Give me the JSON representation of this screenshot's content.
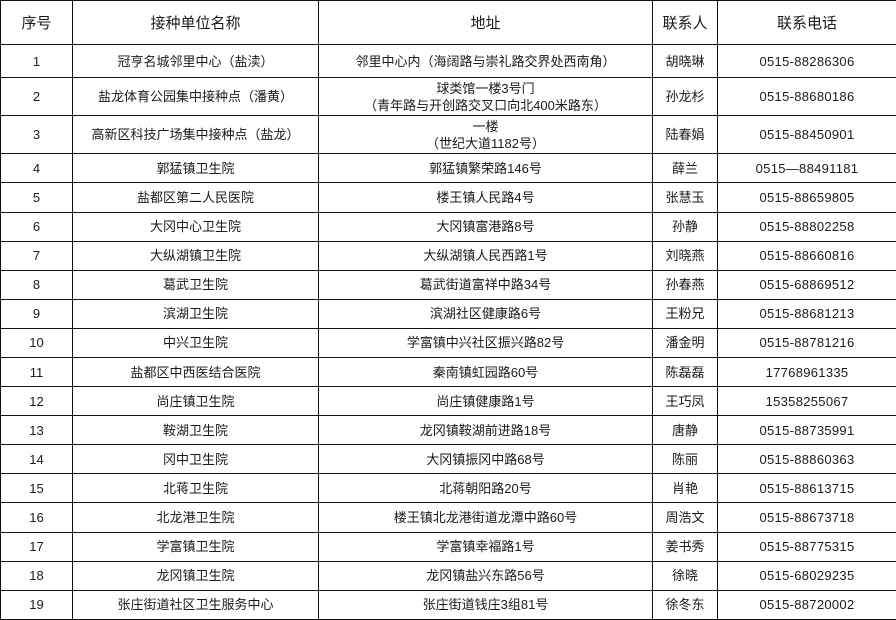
{
  "colors": {
    "border": "#111111",
    "text": "#1a1a1a",
    "background": "#ffffff"
  },
  "table": {
    "headers": {
      "serial": "序号",
      "unit": "接种单位名称",
      "address": "地址",
      "contact": "联系人",
      "phone": "联系电话"
    },
    "rows": [
      {
        "no": "1",
        "unit": "冠亨名城邻里中心（盐渎）",
        "address": "邻里中心内（海阔路与崇礼路交界处西南角）",
        "contact": "胡晓琳",
        "phone": "0515-88286306"
      },
      {
        "no": "2",
        "unit": "盐龙体育公园集中接种点（潘黄）",
        "address": "球类馆一楼3号门\n（青年路与开创路交叉口向北400米路东）",
        "contact": "孙龙杉",
        "phone": "0515-88680186"
      },
      {
        "no": "3",
        "unit": "高新区科技广场集中接种点（盐龙）",
        "address": "一楼\n（世纪大道1182号）",
        "contact": "陆春娟",
        "phone": "0515-88450901"
      },
      {
        "no": "4",
        "unit": "郭猛镇卫生院",
        "address": "郭猛镇繁荣路146号",
        "contact": "薛兰",
        "phone": "0515—88491181"
      },
      {
        "no": "5",
        "unit": "盐都区第二人民医院",
        "address": "楼王镇人民路4号",
        "contact": "张慧玉",
        "phone": "0515-88659805"
      },
      {
        "no": "6",
        "unit": "大冈中心卫生院",
        "address": "大冈镇富港路8号",
        "contact": "孙静",
        "phone": "0515-88802258"
      },
      {
        "no": "7",
        "unit": "大纵湖镇卫生院",
        "address": "大纵湖镇人民西路1号",
        "contact": "刘晓燕",
        "phone": "0515-88660816"
      },
      {
        "no": "8",
        "unit": "葛武卫生院",
        "address": "葛武街道富祥中路34号",
        "contact": "孙春燕",
        "phone": "0515-68869512"
      },
      {
        "no": "9",
        "unit": "滨湖卫生院",
        "address": "滨湖社区健康路6号",
        "contact": "王粉兄",
        "phone": "0515-88681213"
      },
      {
        "no": "10",
        "unit": "中兴卫生院",
        "address": "学富镇中兴社区振兴路82号",
        "contact": "潘金明",
        "phone": "0515-88781216"
      },
      {
        "no": "11",
        "unit": "盐都区中西医结合医院",
        "address": "秦南镇虹园路60号",
        "contact": "陈磊磊",
        "phone": "17768961335"
      },
      {
        "no": "12",
        "unit": "尚庄镇卫生院",
        "address": "尚庄镇健康路1号",
        "contact": "王巧凤",
        "phone": "15358255067"
      },
      {
        "no": "13",
        "unit": "鞍湖卫生院",
        "address": "龙冈镇鞍湖前进路18号",
        "contact": "唐静",
        "phone": "0515-88735991"
      },
      {
        "no": "14",
        "unit": "冈中卫生院",
        "address": "大冈镇振冈中路68号",
        "contact": "陈丽",
        "phone": "0515-88860363"
      },
      {
        "no": "15",
        "unit": "北蒋卫生院",
        "address": "北蒋朝阳路20号",
        "contact": "肖艳",
        "phone": "0515-88613715"
      },
      {
        "no": "16",
        "unit": "北龙港卫生院",
        "address": "楼王镇北龙港街道龙潭中路60号",
        "contact": "周浩文",
        "phone": "0515-88673718"
      },
      {
        "no": "17",
        "unit": "学富镇卫生院",
        "address": "学富镇幸福路1号",
        "contact": "姜书秀",
        "phone": "0515-88775315"
      },
      {
        "no": "18",
        "unit": "龙冈镇卫生院",
        "address": "龙冈镇盐兴东路56号",
        "contact": "徐晓",
        "phone": "0515-68029235"
      },
      {
        "no": "19",
        "unit": "张庄街道社区卫生服务中心",
        "address": "张庄街道钱庄3组81号",
        "contact": "徐冬东",
        "phone": "0515-88720002"
      }
    ]
  }
}
